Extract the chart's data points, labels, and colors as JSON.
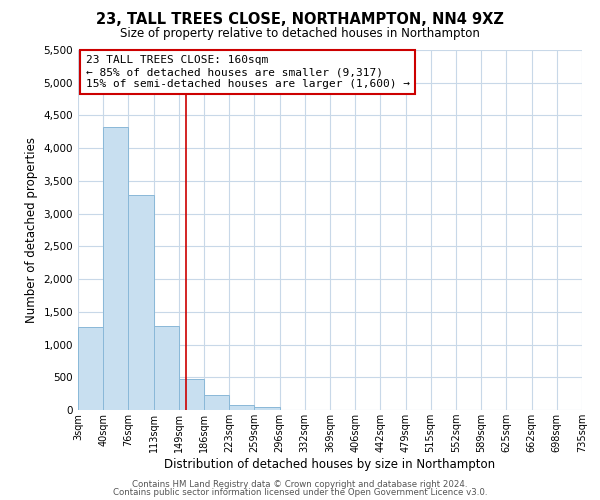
{
  "title": "23, TALL TREES CLOSE, NORTHAMPTON, NN4 9XZ",
  "subtitle": "Size of property relative to detached houses in Northampton",
  "xlabel": "Distribution of detached houses by size in Northampton",
  "ylabel": "Number of detached properties",
  "bar_color": "#c8dff0",
  "bar_edge_color": "#8ab8d8",
  "background_color": "#ffffff",
  "grid_color": "#c8d8e8",
  "marker_line_color": "#cc0000",
  "marker_value": 160,
  "bin_edges": [
    3,
    40,
    76,
    113,
    149,
    186,
    223,
    259,
    296,
    332,
    369,
    406,
    442,
    479,
    515,
    552,
    589,
    625,
    662,
    698,
    735
  ],
  "bar_heights": [
    1270,
    4330,
    3290,
    1280,
    480,
    230,
    80,
    40,
    0,
    0,
    0,
    0,
    0,
    0,
    0,
    0,
    0,
    0,
    0,
    0
  ],
  "ylim": [
    0,
    5500
  ],
  "yticks": [
    0,
    500,
    1000,
    1500,
    2000,
    2500,
    3000,
    3500,
    4000,
    4500,
    5000,
    5500
  ],
  "annotation_text": "23 TALL TREES CLOSE: 160sqm\n← 85% of detached houses are smaller (9,317)\n15% of semi-detached houses are larger (1,600) →",
  "footer_line1": "Contains HM Land Registry data © Crown copyright and database right 2024.",
  "footer_line2": "Contains public sector information licensed under the Open Government Licence v3.0.",
  "tick_labels": [
    "3sqm",
    "40sqm",
    "76sqm",
    "113sqm",
    "149sqm",
    "186sqm",
    "223sqm",
    "259sqm",
    "296sqm",
    "332sqm",
    "369sqm",
    "406sqm",
    "442sqm",
    "479sqm",
    "515sqm",
    "552sqm",
    "589sqm",
    "625sqm",
    "662sqm",
    "698sqm",
    "735sqm"
  ]
}
